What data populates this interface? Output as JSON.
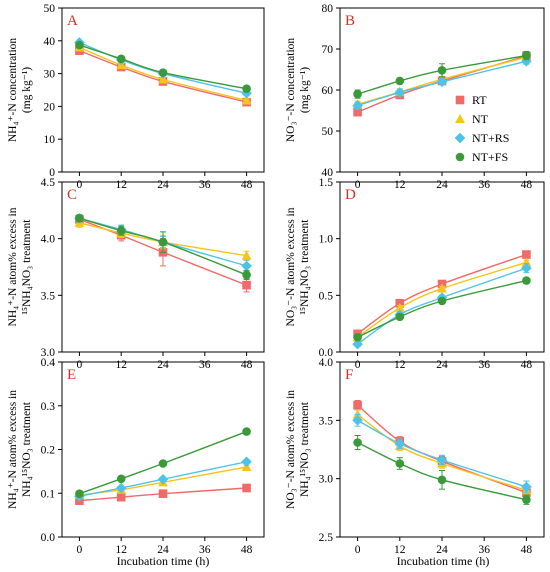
{
  "colors": {
    "RT": "#f06a6a",
    "NT": "#f5c518",
    "NT+RS": "#4ec3e8",
    "NT+FS": "#3a9a3a",
    "panel_letter": "#cc3322"
  },
  "figure": {
    "xlabel": "Incubation time (h)",
    "xticks": [
      0,
      12,
      24,
      36,
      48
    ],
    "legend": {
      "position": "inside panel B, lower-right",
      "entries": [
        "RT",
        "NT",
        "NT+RS",
        "NT+FS"
      ]
    }
  },
  "chart_data": [
    {
      "id": "A",
      "type": "line",
      "letter": "A",
      "ylabel_lines": [
        "NH₄⁺-N concentration",
        "(mg kg⁻¹)"
      ],
      "ylim": [
        0,
        50
      ],
      "yticks": [
        "0",
        "10",
        "20",
        "30",
        "40",
        "50"
      ],
      "ytick_values": [
        0,
        10,
        20,
        30,
        40,
        50
      ],
      "x": [
        0,
        12,
        24,
        48
      ],
      "series": [
        {
          "name": "RT",
          "values": [
            37.0,
            32.0,
            27.6,
            21.3
          ],
          "err": [
            0.6,
            0.6,
            0.5,
            0.5
          ]
        },
        {
          "name": "NT",
          "values": [
            38.0,
            32.6,
            28.2,
            21.8
          ],
          "err": [
            0.5,
            0.5,
            0.5,
            0.5
          ]
        },
        {
          "name": "NT+RS",
          "values": [
            39.5,
            34.2,
            30.0,
            24.0
          ],
          "err": [
            0.6,
            0.6,
            0.5,
            0.5
          ]
        },
        {
          "name": "NT+FS",
          "values": [
            38.7,
            34.5,
            30.3,
            25.4
          ],
          "err": [
            0.5,
            0.5,
            0.5,
            0.6
          ]
        }
      ]
    },
    {
      "id": "B",
      "type": "line",
      "letter": "B",
      "ylabel_lines": [
        "NO₃⁻-N concentration",
        "(mg kg⁻¹)"
      ],
      "ylim": [
        40,
        80
      ],
      "yticks": [
        "40",
        "50",
        "60",
        "70",
        "80"
      ],
      "ytick_values": [
        40,
        50,
        60,
        70,
        80
      ],
      "x": [
        0,
        12,
        24,
        48
      ],
      "series": [
        {
          "name": "RT",
          "values": [
            54.6,
            58.8,
            62.2,
            68.3
          ],
          "err": [
            0.8,
            0.9,
            0.7,
            0.8
          ]
        },
        {
          "name": "NT",
          "values": [
            56.5,
            59.5,
            62.6,
            68.0
          ],
          "err": [
            0.8,
            0.8,
            0.7,
            0.8
          ]
        },
        {
          "name": "NT+RS",
          "values": [
            56.2,
            59.4,
            62.0,
            67.0
          ],
          "err": [
            0.8,
            0.8,
            0.7,
            0.7
          ]
        },
        {
          "name": "NT+FS",
          "values": [
            59.0,
            62.2,
            64.8,
            68.4
          ],
          "err": [
            1.0,
            0.7,
            1.6,
            1.0
          ]
        }
      ]
    },
    {
      "id": "C",
      "type": "line",
      "letter": "C",
      "ylabel_lines": [
        "NH₄⁺-N atom% excess in",
        "¹⁵NH₄NO₃ treatment"
      ],
      "ylim": [
        3.0,
        4.5
      ],
      "yticks": [
        "3.0",
        "3.5",
        "4.0",
        "4.5"
      ],
      "ytick_values": [
        3.0,
        3.5,
        4.0,
        4.5
      ],
      "x": [
        0,
        12,
        24,
        48
      ],
      "series": [
        {
          "name": "RT",
          "values": [
            4.17,
            4.03,
            3.88,
            3.59
          ],
          "err": [
            0.04,
            0.05,
            0.12,
            0.06
          ]
        },
        {
          "name": "NT",
          "values": [
            4.14,
            4.05,
            3.97,
            3.85
          ],
          "err": [
            0.04,
            0.04,
            0.06,
            0.04
          ]
        },
        {
          "name": "NT+RS",
          "values": [
            4.18,
            4.08,
            3.97,
            3.76
          ],
          "err": [
            0.03,
            0.04,
            0.05,
            0.05
          ]
        },
        {
          "name": "NT+FS",
          "values": [
            4.18,
            4.07,
            3.97,
            3.68
          ],
          "err": [
            0.03,
            0.04,
            0.09,
            0.04
          ]
        }
      ]
    },
    {
      "id": "D",
      "type": "line",
      "letter": "D",
      "ylabel_lines": [
        "NO₃⁻-N atom% excess in",
        "¹⁵NH₄NO₃ treatment"
      ],
      "ylim": [
        0.0,
        1.5
      ],
      "yticks": [
        "0.0",
        "0.5",
        "1.0",
        "1.5"
      ],
      "ytick_values": [
        0.0,
        0.5,
        1.0,
        1.5
      ],
      "x": [
        0,
        12,
        24,
        48
      ],
      "series": [
        {
          "name": "RT",
          "values": [
            0.16,
            0.43,
            0.6,
            0.86
          ],
          "err": [
            0.02,
            0.02,
            0.02,
            0.02
          ]
        },
        {
          "name": "NT",
          "values": [
            0.13,
            0.39,
            0.56,
            0.79
          ],
          "err": [
            0.02,
            0.02,
            0.02,
            0.02
          ]
        },
        {
          "name": "NT+RS",
          "values": [
            0.07,
            0.33,
            0.48,
            0.74
          ],
          "err": [
            0.02,
            0.02,
            0.02,
            0.04
          ]
        },
        {
          "name": "NT+FS",
          "values": [
            0.13,
            0.31,
            0.45,
            0.63
          ],
          "err": [
            0.02,
            0.02,
            0.02,
            0.02
          ]
        }
      ]
    },
    {
      "id": "E",
      "type": "line",
      "letter": "E",
      "ylabel_lines": [
        "NH₄⁺-N atom% excess in",
        "NH₄¹⁵NO₃ treatment"
      ],
      "ylim": [
        0.0,
        0.4
      ],
      "yticks": [
        "0.0",
        "0.1",
        "0.2",
        "0.3",
        "0.4"
      ],
      "ytick_values": [
        0.0,
        0.1,
        0.2,
        0.3,
        0.4
      ],
      "x": [
        0,
        12,
        24,
        48
      ],
      "series": [
        {
          "name": "RT",
          "values": [
            0.083,
            0.091,
            0.099,
            0.112
          ],
          "err": [
            0.004,
            0.004,
            0.004,
            0.004
          ]
        },
        {
          "name": "NT",
          "values": [
            0.096,
            0.108,
            0.125,
            0.16
          ],
          "err": [
            0.004,
            0.004,
            0.004,
            0.004
          ]
        },
        {
          "name": "NT+RS",
          "values": [
            0.093,
            0.112,
            0.132,
            0.172
          ],
          "err": [
            0.004,
            0.004,
            0.004,
            0.004
          ]
        },
        {
          "name": "NT+FS",
          "values": [
            0.099,
            0.133,
            0.168,
            0.241
          ],
          "err": [
            0.004,
            0.004,
            0.004,
            0.004
          ]
        }
      ]
    },
    {
      "id": "F",
      "type": "line",
      "letter": "F",
      "ylabel_lines": [
        "NO₃⁻-N atom% excess in",
        "NH₄¹⁵NO₃ treatment"
      ],
      "ylim": [
        2.5,
        4.0
      ],
      "yticks": [
        "2.5",
        "3.0",
        "3.5",
        "4.0"
      ],
      "ytick_values": [
        2.5,
        3.0,
        3.5,
        4.0
      ],
      "x": [
        0,
        12,
        24,
        48
      ],
      "series": [
        {
          "name": "RT",
          "values": [
            3.63,
            3.32,
            3.15,
            2.88
          ],
          "err": [
            0.04,
            0.04,
            0.04,
            0.04
          ]
        },
        {
          "name": "NT",
          "values": [
            3.55,
            3.28,
            3.13,
            2.9
          ],
          "err": [
            0.04,
            0.04,
            0.04,
            0.04
          ]
        },
        {
          "name": "NT+RS",
          "values": [
            3.5,
            3.3,
            3.16,
            2.93
          ],
          "err": [
            0.05,
            0.04,
            0.04,
            0.05
          ]
        },
        {
          "name": "NT+FS",
          "values": [
            3.31,
            3.13,
            2.99,
            2.82
          ],
          "err": [
            0.06,
            0.05,
            0.08,
            0.04
          ]
        }
      ]
    }
  ]
}
